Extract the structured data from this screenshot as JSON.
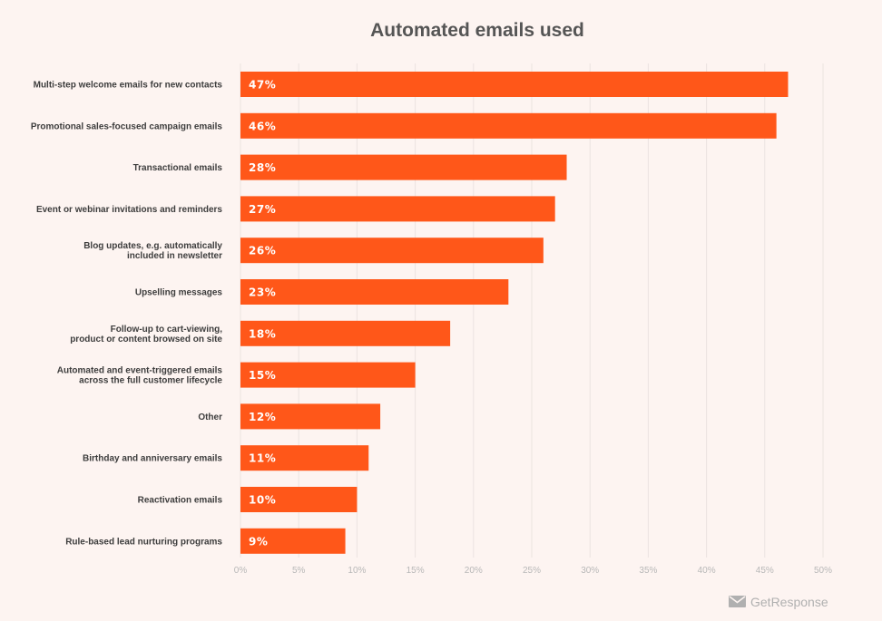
{
  "chart_data": {
    "type": "bar",
    "orientation": "horizontal",
    "title": "Automated emails used",
    "categories": [
      [
        "Multi-step welcome emails for new contacts"
      ],
      [
        "Promotional sales-focused campaign emails"
      ],
      [
        "Transactional emails"
      ],
      [
        "Event or webinar invitations and reminders"
      ],
      [
        "Blog updates, e.g. automatically",
        "included in newsletter"
      ],
      [
        "Upselling messages"
      ],
      [
        "Follow-up to cart-viewing,",
        "product or content browsed on site"
      ],
      [
        "Automated and event-triggered emails",
        "across the full customer lifecycle"
      ],
      [
        "Other"
      ],
      [
        "Birthday and anniversary emails"
      ],
      [
        "Reactivation emails"
      ],
      [
        "Rule-based lead nurturing programs"
      ]
    ],
    "values": [
      47,
      46,
      28,
      27,
      26,
      23,
      18,
      15,
      12,
      11,
      10,
      9
    ],
    "value_labels": [
      "47%",
      "46%",
      "28%",
      "27%",
      "26%",
      "23%",
      "18%",
      "15%",
      "12%",
      "11%",
      "10%",
      "9%"
    ],
    "xlim": [
      0,
      50
    ],
    "x_ticks": [
      0,
      5,
      10,
      15,
      20,
      25,
      30,
      35,
      40,
      45,
      50
    ],
    "x_tick_labels": [
      "0%",
      "5%",
      "10%",
      "15%",
      "20%",
      "25%",
      "30%",
      "35%",
      "40%",
      "45%",
      "50%"
    ],
    "grid": true,
    "bar_color": "#ff5719"
  },
  "brand": {
    "name": "GetResponse",
    "icon": "envelope-icon",
    "color": "#b0b0b0"
  },
  "colors": {
    "background": "#fdf4f1"
  }
}
